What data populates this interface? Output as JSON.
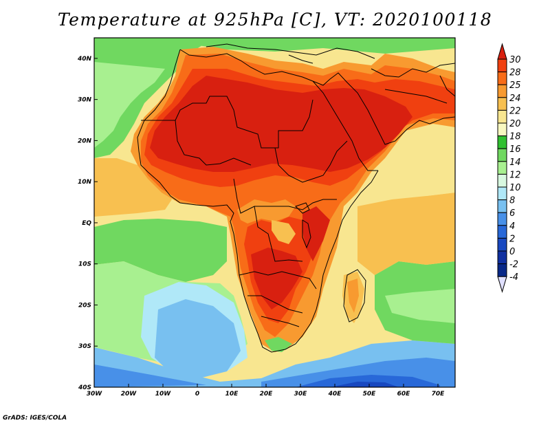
{
  "title": "Temperature at 925hPa [C], VT: 2020100118",
  "credit": "GrADS: IGES/COLA",
  "map": {
    "lon_range": [
      -30,
      75
    ],
    "lat_range": [
      -40,
      45
    ],
    "lon_ticks": [
      {
        "value": -30,
        "label": "30W"
      },
      {
        "value": -20,
        "label": "20W"
      },
      {
        "value": -10,
        "label": "10W"
      },
      {
        "value": 0,
        "label": "0"
      },
      {
        "value": 10,
        "label": "10E"
      },
      {
        "value": 20,
        "label": "20E"
      },
      {
        "value": 30,
        "label": "30E"
      },
      {
        "value": 40,
        "label": "40E"
      },
      {
        "value": 50,
        "label": "50E"
      },
      {
        "value": 60,
        "label": "60E"
      },
      {
        "value": 70,
        "label": "70E"
      }
    ],
    "lat_ticks": [
      {
        "value": 40,
        "label": "40N"
      },
      {
        "value": 30,
        "label": "30N"
      },
      {
        "value": 20,
        "label": "20N"
      },
      {
        "value": 10,
        "label": "10N"
      },
      {
        "value": 0,
        "label": "EQ"
      },
      {
        "value": -10,
        "label": "10S"
      },
      {
        "value": -20,
        "label": "20S"
      },
      {
        "value": -30,
        "label": "30S"
      },
      {
        "value": -40,
        "label": "40S"
      }
    ]
  },
  "colorbar": {
    "labels": [
      "30",
      "28",
      "25",
      "24",
      "22",
      "20",
      "18",
      "16",
      "14",
      "12",
      "10",
      "8",
      "6",
      "4",
      "2",
      "0",
      "-2",
      "-4"
    ],
    "colors": [
      "#d82010",
      "#f04010",
      "#f86c18",
      "#f89a30",
      "#f8c050",
      "#f8e690",
      "#f8f8c0",
      "#30c030",
      "#70d860",
      "#a8f090",
      "#d8f8e0",
      "#b0e8f8",
      "#78c0f0",
      "#4890e8",
      "#2868d8",
      "#1848c0",
      "#1030a0",
      "#082888",
      "#e0e0ff"
    ]
  }
}
